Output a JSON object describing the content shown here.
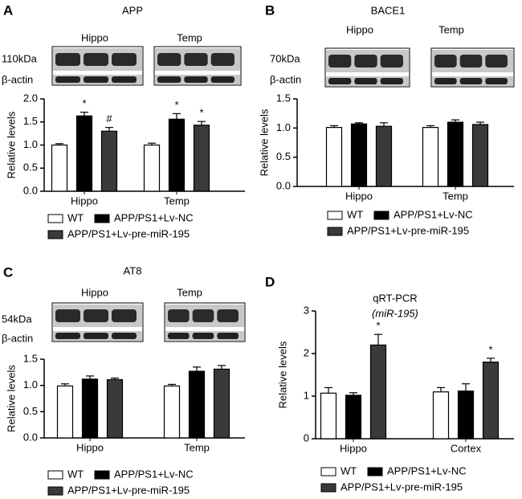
{
  "chart_data": [
    {
      "type": "bar",
      "panel": "A",
      "title": "APP",
      "gel_labels": [
        "Hippo",
        "Temp"
      ],
      "band_label": "110kDa",
      "loading_label": "β-actin",
      "ylabel": "Relative levels",
      "categories": [
        "Hippo",
        "Temp"
      ],
      "ylim": [
        0,
        2
      ],
      "yticks": [
        {
          "value": 0,
          "label": "0.0"
        },
        0.5,
        {
          "value": 1,
          "label": "1.0"
        },
        1.5,
        {
          "value": 2,
          "label": "2.0"
        }
      ],
      "series": [
        {
          "name": "WT",
          "color": "#ffffff",
          "values": [
            1.0,
            1.0
          ],
          "errors": [
            0.03,
            0.04
          ],
          "annotations": [
            null,
            null
          ]
        },
        {
          "name": "APP/PS1+Lv-NC",
          "color": "#000000",
          "values": [
            1.63,
            1.56
          ],
          "errors": [
            0.08,
            0.12
          ],
          "annotations": [
            "*",
            "*"
          ]
        },
        {
          "name": "APP/PS1+Lv-pre-miR-195",
          "color": "#3a3a3a",
          "values": [
            1.3,
            1.43
          ],
          "errors": [
            0.08,
            0.08
          ],
          "annotations": [
            "#",
            "*"
          ]
        }
      ]
    },
    {
      "type": "bar",
      "panel": "B",
      "title": "BACE1",
      "gel_labels": [
        "Hippo",
        "Temp"
      ],
      "band_label": "70kDa",
      "loading_label": "β-actin",
      "ylabel": "Relative levels",
      "categories": [
        "Hippo",
        "Temp"
      ],
      "ylim": [
        0,
        1.5
      ],
      "yticks": [
        {
          "value": 0,
          "label": "0.0"
        },
        0.5,
        {
          "value": 1,
          "label": "1.0"
        },
        1.5
      ],
      "series": [
        {
          "name": "WT",
          "color": "#ffffff",
          "values": [
            1.01,
            1.01
          ],
          "errors": [
            0.03,
            0.03
          ]
        },
        {
          "name": "APP/PS1+Lv-NC",
          "color": "#000000",
          "values": [
            1.07,
            1.1
          ],
          "errors": [
            0.02,
            0.04
          ]
        },
        {
          "name": "APP/PS1+Lv-pre-miR-195",
          "color": "#3a3a3a",
          "values": [
            1.03,
            1.06
          ],
          "errors": [
            0.06,
            0.04
          ]
        }
      ]
    },
    {
      "type": "bar",
      "panel": "C",
      "title": "AT8",
      "gel_labels": [
        "Hippo",
        "Temp"
      ],
      "band_label": "54kDa",
      "loading_label": "β-actin",
      "ylabel": "Relative levels",
      "categories": [
        "Hippo",
        "Temp"
      ],
      "ylim": [
        0,
        1.5
      ],
      "yticks": [
        {
          "value": 0,
          "label": "0.0"
        },
        0.5,
        {
          "value": 1,
          "label": "1.0"
        },
        1.5
      ],
      "series": [
        {
          "name": "WT",
          "color": "#ffffff",
          "values": [
            0.99,
            0.99
          ],
          "errors": [
            0.04,
            0.03
          ]
        },
        {
          "name": "APP/PS1+Lv-NC",
          "color": "#000000",
          "values": [
            1.12,
            1.27
          ],
          "errors": [
            0.06,
            0.08
          ]
        },
        {
          "name": "APP/PS1+Lv-pre-miR-195",
          "color": "#3a3a3a",
          "values": [
            1.11,
            1.31
          ],
          "errors": [
            0.03,
            0.07
          ]
        }
      ]
    },
    {
      "type": "bar",
      "panel": "D",
      "title": "qRT-PCR",
      "subtitle": "(miR-195)",
      "ylabel": "Relative levels",
      "categories": [
        "Hippo",
        "Cortex"
      ],
      "ylim": [
        0,
        3
      ],
      "yticks": [
        0,
        1,
        2,
        3
      ],
      "series": [
        {
          "name": "WT",
          "color": "#ffffff",
          "values": [
            1.07,
            1.1
          ],
          "errors": [
            0.13,
            0.1
          ],
          "annotations": [
            null,
            null
          ]
        },
        {
          "name": "APP/PS1+Lv-NC",
          "color": "#000000",
          "values": [
            1.02,
            1.12
          ],
          "errors": [
            0.06,
            0.17
          ],
          "annotations": [
            null,
            null
          ]
        },
        {
          "name": "APP/PS1+Lv-pre-miR-195",
          "color": "#3a3a3a",
          "values": [
            2.2,
            1.8
          ],
          "errors": [
            0.25,
            0.09
          ],
          "annotations": [
            "*",
            "*"
          ]
        }
      ]
    }
  ]
}
